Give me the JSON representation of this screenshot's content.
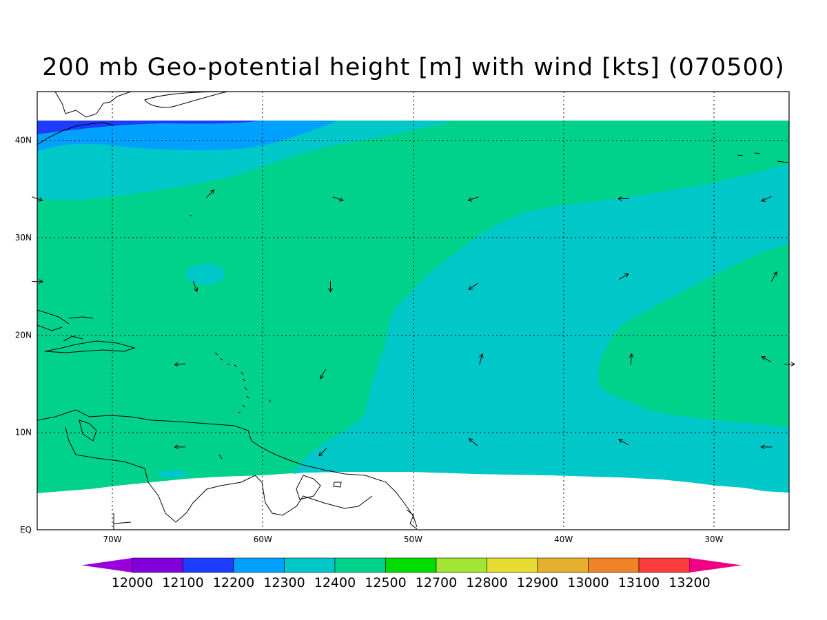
{
  "title": "200 mb Geo-potential height [m] with wind [kts] (070500)",
  "lat_labels": [
    "EQ",
    "10N",
    "20N",
    "30N",
    "40N"
  ],
  "lon_labels": [
    "70W",
    "60W",
    "50W",
    "40W",
    "30W"
  ],
  "colorbar": {
    "labels": [
      "12000",
      "12100",
      "12200",
      "12300",
      "12400",
      "12500",
      "12700",
      "12800",
      "12900",
      "13000",
      "13100",
      "13200"
    ],
    "colors": [
      "#9a00dc",
      "#8200dc",
      "#1e3cff",
      "#00a0ff",
      "#00c8c8",
      "#00d28c",
      "#00dc00",
      "#a0e632",
      "#e6dc32",
      "#e6af2d",
      "#f08228",
      "#fa3c3c",
      "#f00082"
    ]
  },
  "field_colors": {
    "c12100": "#1e3cff",
    "c12200": "#00a0ff",
    "c12300": "#00c8c8",
    "c12400": "#00d28c"
  },
  "wind_vectors": [
    {
      "lon": -63.5,
      "lat": 34.5,
      "dir": 45
    },
    {
      "lon": -55,
      "lat": 34,
      "dir": 110
    },
    {
      "lon": -46,
      "lat": 34,
      "dir": 250
    },
    {
      "lon": -36,
      "lat": 34,
      "dir": 270
    },
    {
      "lon": -26.5,
      "lat": 34,
      "dir": 245
    },
    {
      "lon": -75,
      "lat": 34,
      "dir": 110
    },
    {
      "lon": -64.5,
      "lat": 25,
      "dir": 160
    },
    {
      "lon": -55.5,
      "lat": 25,
      "dir": 180
    },
    {
      "lon": -46,
      "lat": 25,
      "dir": 235
    },
    {
      "lon": -36,
      "lat": 26,
      "dir": 60
    },
    {
      "lon": -26,
      "lat": 26,
      "dir": 30
    },
    {
      "lon": -75,
      "lat": 25.5,
      "dir": 90
    },
    {
      "lon": -65.5,
      "lat": 17,
      "dir": 265
    },
    {
      "lon": -56,
      "lat": 16,
      "dir": 210
    },
    {
      "lon": -45.5,
      "lat": 17.5,
      "dir": 15
    },
    {
      "lon": -35.5,
      "lat": 17.5,
      "dir": 5
    },
    {
      "lon": -26.5,
      "lat": 17.5,
      "dir": 300
    },
    {
      "lon": -25,
      "lat": 17,
      "dir": 90
    },
    {
      "lon": -65.5,
      "lat": 8.5,
      "dir": 270
    },
    {
      "lon": -56,
      "lat": 8,
      "dir": 225
    },
    {
      "lon": -46,
      "lat": 9,
      "dir": 310
    },
    {
      "lon": -36,
      "lat": 9,
      "dir": 300
    },
    {
      "lon": -26.5,
      "lat": 8.5,
      "dir": 270
    }
  ]
}
